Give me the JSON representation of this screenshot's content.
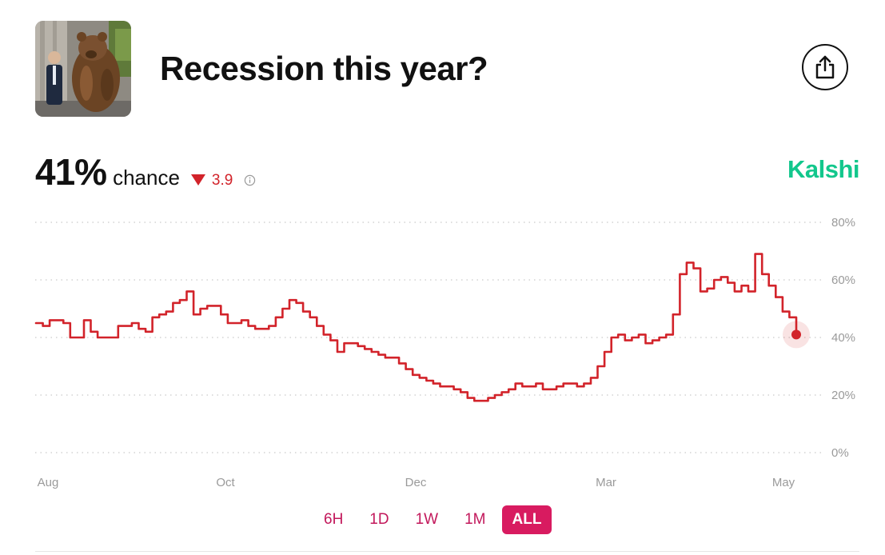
{
  "header": {
    "title": "Recession this year?"
  },
  "summary": {
    "percent": "41%",
    "chance_label": "chance",
    "delta": "3.9",
    "brand": "Kalshi"
  },
  "colors": {
    "line": "#d2232a",
    "brand": "#12c78c",
    "active_range": "#d81b60",
    "range_text": "#c2185b"
  },
  "ranges": [
    "6H",
    "1D",
    "1W",
    "1M",
    "ALL"
  ],
  "active_range": "ALL",
  "chart_data": {
    "type": "line",
    "title": "",
    "xlabel": "",
    "ylabel": "",
    "x_ticks": [
      "Aug",
      "Oct",
      "Dec",
      "Mar",
      "May"
    ],
    "y_ticks": [
      "80%",
      "60%",
      "40%",
      "20%",
      "0%"
    ],
    "y_tick_values": [
      80,
      60,
      40,
      20,
      0
    ],
    "ylim": [
      0,
      80
    ],
    "grid": true,
    "last_value": 41,
    "series": [
      {
        "values": [
          45,
          44,
          46,
          46,
          45,
          40,
          40,
          46,
          42,
          40,
          40,
          40,
          44,
          44,
          45,
          43,
          42,
          47,
          48,
          49,
          52,
          53,
          56,
          48,
          50,
          51,
          51,
          48,
          45,
          45,
          46,
          44,
          43,
          43,
          44,
          47,
          50,
          53,
          52,
          49,
          47,
          44,
          41,
          39,
          35,
          38,
          38,
          37,
          36,
          35,
          34,
          33,
          33,
          31,
          29,
          27,
          26,
          25,
          24,
          23,
          23,
          22,
          21,
          19,
          18,
          18,
          19,
          20,
          21,
          22,
          24,
          23,
          23,
          24,
          22,
          22,
          23,
          24,
          24,
          23,
          24,
          26,
          30,
          35,
          40,
          41,
          39,
          40,
          41,
          38,
          39,
          40,
          41,
          48,
          62,
          66,
          64,
          56,
          57,
          60,
          61,
          59,
          56,
          58,
          56,
          69,
          62,
          58,
          54,
          49,
          47,
          41
        ]
      }
    ]
  }
}
